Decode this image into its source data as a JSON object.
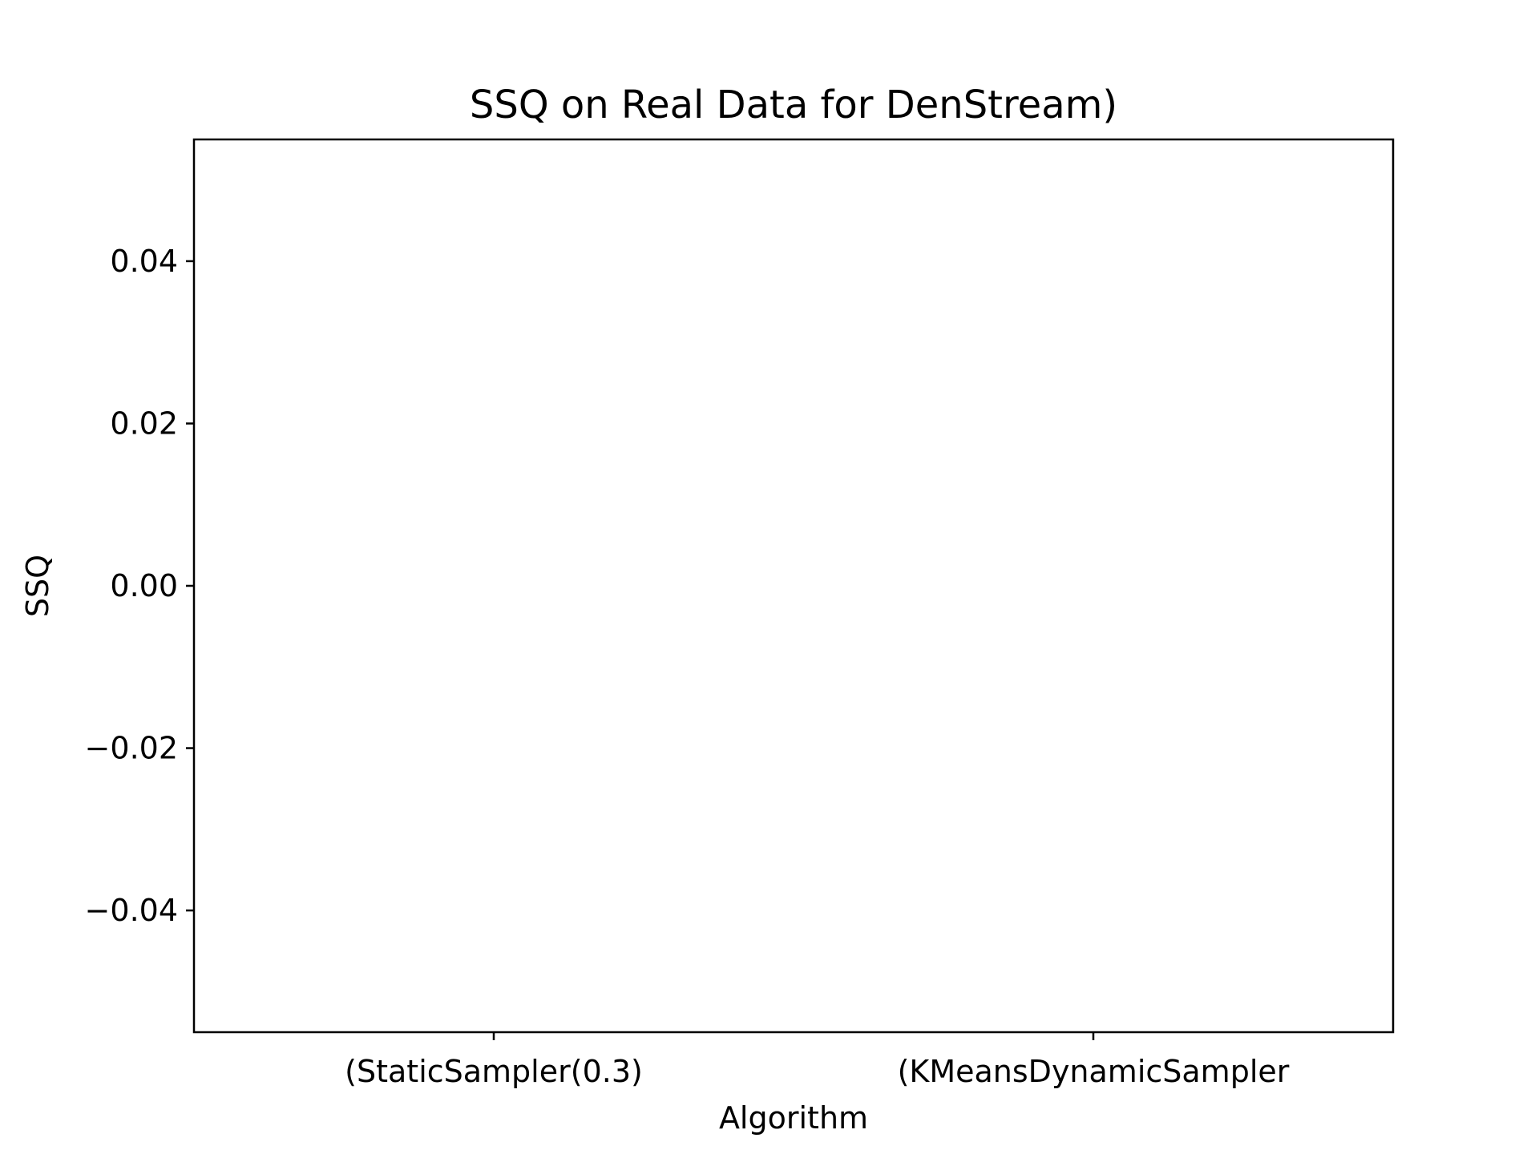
{
  "chart_data": {
    "type": "bar",
    "title": "SSQ on Real Data for  DenStream)",
    "xlabel": "Algorithm",
    "ylabel": "SSQ",
    "categories": [
      "(StaticSampler(0.3)",
      "(KMeansDynamicSampler"
    ],
    "values": [
      0,
      0
    ],
    "ylim": [
      -0.055,
      0.055
    ],
    "yticks": [
      -0.04,
      -0.02,
      0.0,
      0.02,
      0.04
    ],
    "ytick_labels": [
      "−0.04",
      "−0.02",
      "0.00",
      "0.02",
      "0.04"
    ],
    "grid": false,
    "legend": "none"
  },
  "colors": {
    "axes": "#000000",
    "background": "#ffffff",
    "bar": "#1f77b4"
  }
}
